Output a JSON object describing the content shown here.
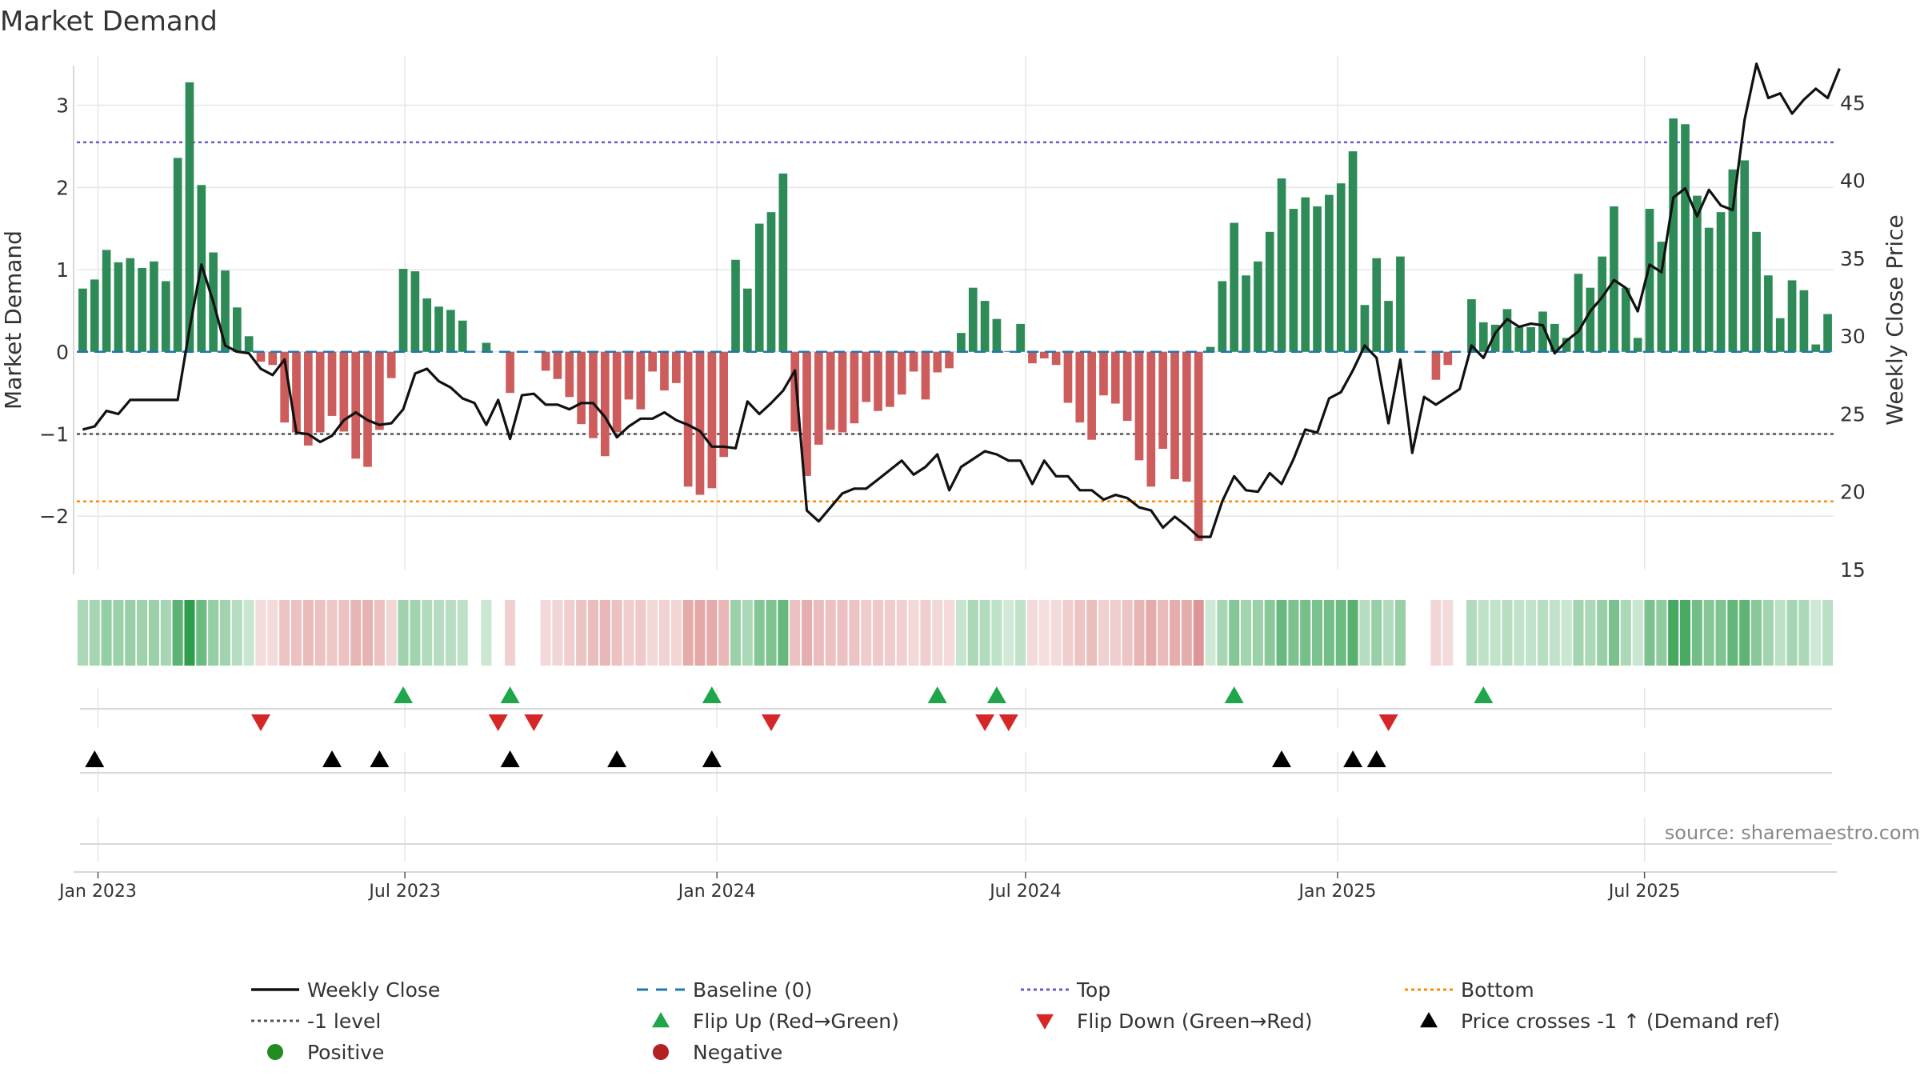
{
  "chart_data": {
    "type": "bar",
    "title": "Market Demand",
    "ylabel": "Market Demand",
    "y2label": "Weekly Close Price",
    "ylim": [
      -2.65,
      3.6
    ],
    "y2lim": [
      15,
      48
    ],
    "yticks": [
      -2,
      -1,
      0,
      1,
      2,
      3
    ],
    "yticklabels": [
      "−2",
      "−1",
      "0",
      "1",
      "2",
      "3"
    ],
    "y2ticks": [
      15,
      20,
      25,
      30,
      35,
      40,
      45
    ],
    "y2ticklabels": [
      "15",
      "20",
      "25",
      "30",
      "35",
      "40",
      "45"
    ],
    "start_date": "2022-12-23",
    "week_days": 7,
    "date_ticks": [
      {
        "date": "2023-01-01",
        "label": "Jan 2023"
      },
      {
        "date": "2023-07-01",
        "label": "Jul 2023"
      },
      {
        "date": "2024-01-01",
        "label": "Jan 2024"
      },
      {
        "date": "2024-07-01",
        "label": "Jul 2024"
      },
      {
        "date": "2025-01-01",
        "label": "Jan 2025"
      },
      {
        "date": "2025-07-01",
        "label": "Jul 2025"
      }
    ],
    "levels": {
      "baseline": 0,
      "top": 2.55,
      "minus_one": -1,
      "bottom": -1.82
    },
    "series": [
      {
        "name": "Market Demand",
        "values": [
          0.77,
          0.88,
          1.24,
          1.09,
          1.14,
          1.02,
          1.1,
          0.86,
          2.36,
          3.28,
          2.03,
          1.21,
          0.99,
          0.54,
          0.19,
          -0.12,
          -0.16,
          -0.86,
          -0.98,
          -1.14,
          -0.98,
          -0.78,
          -0.97,
          -1.3,
          -1.4,
          -0.95,
          -0.32,
          1.01,
          0.98,
          0.65,
          0.55,
          0.51,
          0.38,
          0,
          0.11,
          0,
          -0.5,
          0,
          0,
          -0.23,
          -0.33,
          -0.55,
          -0.88,
          -1.05,
          -1.27,
          -0.98,
          -0.58,
          -0.7,
          -0.24,
          -0.47,
          -0.38,
          -1.64,
          -1.74,
          -1.66,
          -1.28,
          1.12,
          0.77,
          1.56,
          1.7,
          2.17,
          -0.97,
          -1.51,
          -1.13,
          -0.95,
          -0.98,
          -0.87,
          -0.61,
          -0.72,
          -0.67,
          -0.52,
          -0.24,
          -0.58,
          -0.25,
          -0.2,
          0.23,
          0.78,
          0.62,
          0.4,
          0.01,
          0.34,
          -0.14,
          -0.08,
          -0.16,
          -0.62,
          -0.86,
          -1.07,
          -0.53,
          -0.63,
          -0.84,
          -1.32,
          -1.64,
          -1.18,
          -1.55,
          -1.58,
          -2.3,
          0.06,
          0.86,
          1.57,
          0.93,
          1.1,
          1.46,
          2.11,
          1.74,
          1.88,
          1.77,
          1.91,
          2.05,
          2.44,
          0.57,
          1.14,
          0.62,
          1.16,
          0,
          0,
          -0.34,
          -0.16,
          0,
          0.64,
          0.36,
          0.33,
          0.52,
          0.3,
          0.3,
          0.49,
          0.34,
          0.17,
          0.95,
          0.78,
          1.16,
          1.77,
          0.78,
          0.17,
          1.74,
          1.34,
          2.84,
          2.77,
          1.9,
          1.51,
          1.7,
          2.22,
          2.33,
          1.46,
          0.93,
          0.41,
          0.87,
          0.75,
          0.09,
          0.46
        ]
      },
      {
        "name": "Weekly Close",
        "values": [
          24,
          24.2,
          25.2,
          25,
          25.9,
          25.9,
          25.9,
          25.9,
          25.9,
          30.5,
          34.6,
          32.2,
          29.4,
          29,
          28.9,
          27.9,
          27.5,
          28.5,
          23.8,
          23.7,
          23.2,
          23.6,
          24.6,
          25.1,
          24.6,
          24.3,
          24.4,
          25.3,
          27.6,
          27.9,
          27.1,
          26.7,
          26,
          25.7,
          24.3,
          25.9,
          23.4,
          26.2,
          26.3,
          25.6,
          25.6,
          25.3,
          25.7,
          25.7,
          24.8,
          23.5,
          24.2,
          24.7,
          24.7,
          25.1,
          24.6,
          24.3,
          23.9,
          22.9,
          22.9,
          22.8,
          25.8,
          25,
          25.7,
          26.5,
          27.8,
          18.8,
          18.1,
          19,
          19.9,
          20.2,
          20.2,
          20.8,
          21.4,
          22,
          21.1,
          21.6,
          22.4,
          20.1,
          21.6,
          22.1,
          22.6,
          22.4,
          22,
          22,
          20.5,
          22,
          21,
          21,
          20.1,
          20.1,
          19.5,
          19.8,
          19.6,
          19,
          18.8,
          17.7,
          18.4,
          17.8,
          17.1,
          17.1,
          19.4,
          21,
          20.1,
          20,
          21.2,
          20.5,
          22.1,
          24,
          23.8,
          26,
          26.4,
          27.8,
          29.4,
          28.6,
          24.4,
          28.5,
          22.5,
          26.1,
          25.6,
          26.1,
          26.6,
          29.4,
          28.6,
          30.2,
          31.1,
          30.6,
          30.8,
          30.7,
          28.9,
          29.7,
          30.3,
          31.6,
          32.5,
          33.6,
          33.1,
          31.6,
          34.6,
          34.1,
          38.9,
          39.5,
          37.7,
          39.4,
          38.4,
          38.1,
          43.9,
          47.5,
          45.3,
          45.6,
          44.3,
          45.2,
          45.9,
          45.3,
          47.2
        ]
      }
    ],
    "strip": {
      "orange_level": 0.5
    },
    "flip_up_weeks": [
      27,
      36,
      53,
      72,
      77,
      97,
      118
    ],
    "flip_down_weeks": [
      15,
      35,
      38,
      58,
      76,
      78,
      110
    ],
    "cross_weeks": [
      1,
      21,
      25,
      36,
      45,
      53,
      101,
      107,
      109
    ],
    "source": "source: sharemaestro.com",
    "colors": {
      "positive": "#2e8b57",
      "negative": "#cd5c5c",
      "price": "#111111",
      "baseline": "#1f77b4",
      "top": "#6a5acd",
      "minus_one": "#555555",
      "bottom": "#ff8c00",
      "flip_up": "#1fa64a",
      "flip_down": "#d62728",
      "cross": "#000000",
      "pos_dot": "#228b22",
      "neg_dot": "#b22222",
      "grid": "#e6e6e6",
      "axis": "#cccccc"
    },
    "legend": [
      {
        "key": "line-black",
        "label": "Weekly Close"
      },
      {
        "key": "dash-blue",
        "label": "Baseline (0)"
      },
      {
        "key": "dot-purple",
        "label": "Top"
      },
      {
        "key": "dot-orange",
        "label": "Bottom"
      },
      {
        "key": "dot-gray",
        "label": "-1 level"
      },
      {
        "key": "tri-up-green",
        "label": "Flip Up (Red→Green)"
      },
      {
        "key": "tri-down-red",
        "label": "Flip Down (Green→Red)"
      },
      {
        "key": "tri-up-black",
        "label": "Price crosses -1 ↑ (Demand ref)"
      },
      {
        "key": "circle-green",
        "label": "Positive"
      },
      {
        "key": "circle-red",
        "label": "Negative"
      }
    ]
  }
}
